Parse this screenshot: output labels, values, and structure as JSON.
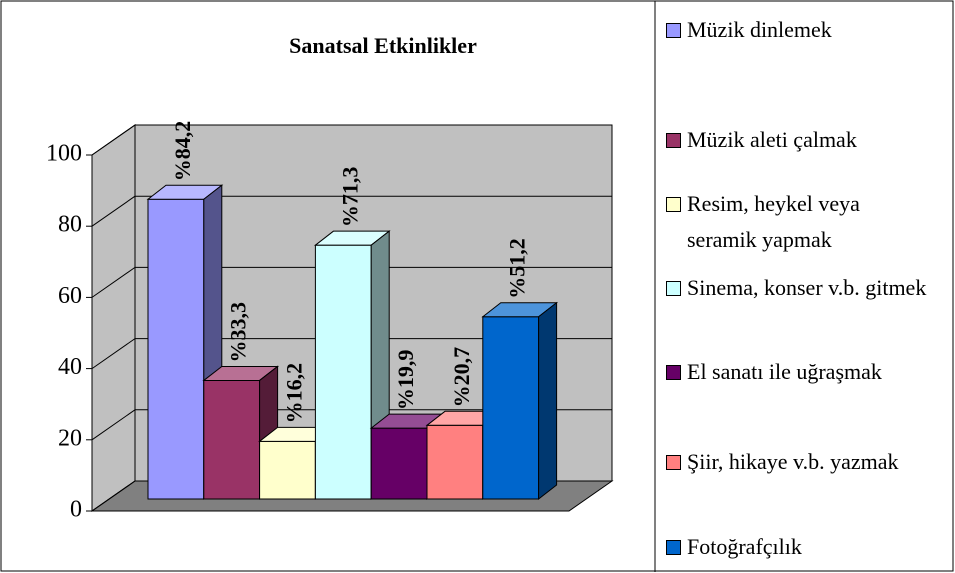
{
  "chart_data": {
    "type": "bar",
    "title": "Sanatsal Etkinlikler",
    "categories": [
      "Müzik dinlemek",
      "Müzik aleti çalmak",
      "Resim, heykel veya seramik yapmak",
      "Sinema, konser v.b. gitmek",
      "El sanatı ile uğraşmak",
      "Şiir, hikaye v.b. yazmak",
      "Fotoğrafçılık"
    ],
    "values": [
      84.2,
      33.3,
      16.2,
      71.3,
      19.9,
      20.7,
      51.2
    ],
    "value_labels": [
      "%84,2",
      "%33,3",
      "%16,2",
      "%71,3",
      "%19,9",
      "%20,7",
      "%51,2"
    ],
    "colors": [
      "#9999ff",
      "#993366",
      "#ffffcc",
      "#ccffff",
      "#660066",
      "#ff8080",
      "#0066cc"
    ],
    "ylim": [
      0,
      100
    ],
    "yticks": [
      0,
      20,
      40,
      60,
      80,
      100
    ],
    "grid": true,
    "legend": "right"
  }
}
